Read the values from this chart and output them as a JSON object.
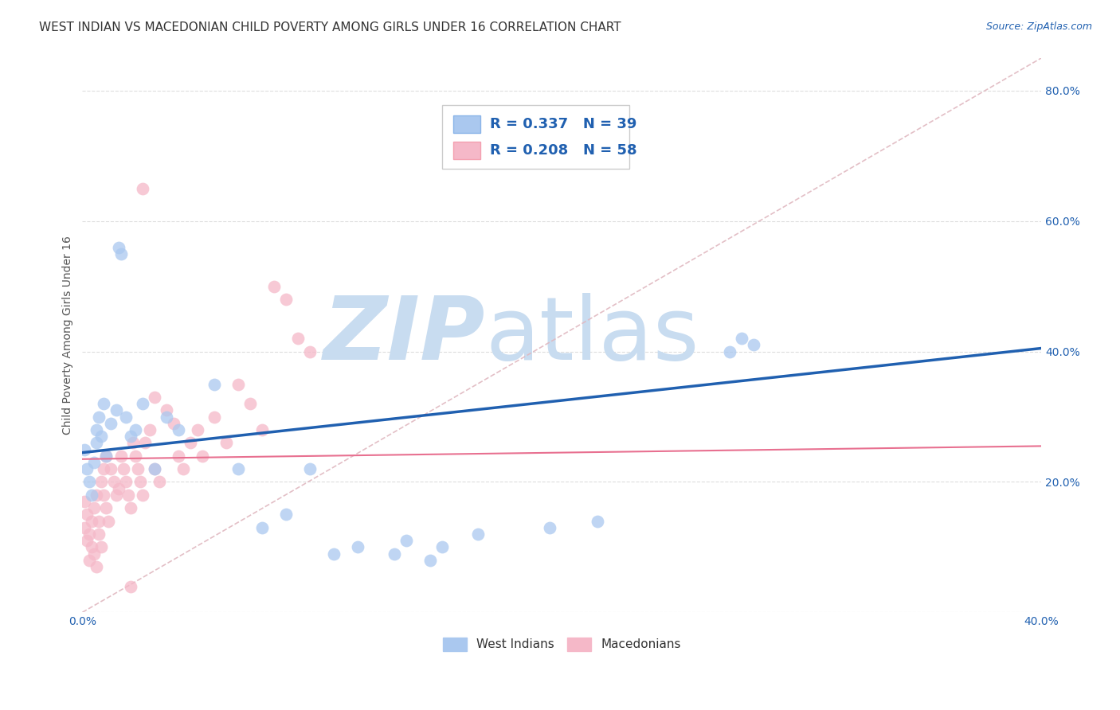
{
  "title": "WEST INDIAN VS MACEDONIAN CHILD POVERTY AMONG GIRLS UNDER 16 CORRELATION CHART",
  "source": "Source: ZipAtlas.com",
  "ylabel": "Child Poverty Among Girls Under 16",
  "xlim": [
    0.0,
    0.4
  ],
  "ylim": [
    0.0,
    0.85
  ],
  "xtick_vals": [
    0.0,
    0.05,
    0.1,
    0.15,
    0.2,
    0.25,
    0.3,
    0.35,
    0.4
  ],
  "xtick_labels": [
    "0.0%",
    "",
    "",
    "",
    "",
    "",
    "",
    "",
    "40.0%"
  ],
  "ytick_vals": [
    0.0,
    0.2,
    0.4,
    0.6,
    0.8
  ],
  "ytick_labels": [
    "",
    "20.0%",
    "40.0%",
    "60.0%",
    "80.0%"
  ],
  "west_indian_R": 0.337,
  "west_indian_N": 39,
  "macedonian_R": 0.208,
  "macedonian_N": 58,
  "west_indian_color": "#aac8ef",
  "macedonian_color": "#f5b8c8",
  "west_indian_line_color": "#2060b0",
  "macedonian_line_color": "#e87090",
  "diagonal_color": "#e0b8c0",
  "grid_color": "#dddddd",
  "background_color": "#ffffff",
  "watermark_zip_color": "#c8dcf0",
  "watermark_atlas_color": "#c8dcf0",
  "legend_text_color": "#2060b0",
  "title_color": "#333333",
  "title_fontsize": 11,
  "axis_label_fontsize": 10,
  "tick_fontsize": 10,
  "legend_fontsize": 13,
  "wi_line_y0": 0.245,
  "wi_line_y1": 0.405,
  "mac_line_y0": 0.235,
  "mac_line_y1": 0.255,
  "wi_x": [
    0.001,
    0.002,
    0.003,
    0.004,
    0.005,
    0.006,
    0.006,
    0.007,
    0.008,
    0.009,
    0.01,
    0.012,
    0.014,
    0.015,
    0.016,
    0.018,
    0.02,
    0.022,
    0.025,
    0.03,
    0.035,
    0.04,
    0.055,
    0.065,
    0.075,
    0.085,
    0.095,
    0.105,
    0.115,
    0.135,
    0.15,
    0.165,
    0.195,
    0.215,
    0.27,
    0.275,
    0.28,
    0.13,
    0.145
  ],
  "wi_y": [
    0.25,
    0.22,
    0.2,
    0.18,
    0.23,
    0.26,
    0.28,
    0.3,
    0.27,
    0.32,
    0.24,
    0.29,
    0.31,
    0.56,
    0.55,
    0.3,
    0.27,
    0.28,
    0.32,
    0.22,
    0.3,
    0.28,
    0.35,
    0.22,
    0.13,
    0.15,
    0.22,
    0.09,
    0.1,
    0.11,
    0.1,
    0.12,
    0.13,
    0.14,
    0.4,
    0.42,
    0.41,
    0.09,
    0.08
  ],
  "mac_x": [
    0.001,
    0.001,
    0.002,
    0.002,
    0.003,
    0.003,
    0.004,
    0.004,
    0.005,
    0.005,
    0.006,
    0.006,
    0.007,
    0.007,
    0.008,
    0.008,
    0.009,
    0.009,
    0.01,
    0.01,
    0.011,
    0.012,
    0.013,
    0.014,
    0.015,
    0.016,
    0.017,
    0.018,
    0.019,
    0.02,
    0.021,
    0.022,
    0.023,
    0.024,
    0.025,
    0.026,
    0.028,
    0.03,
    0.032,
    0.035,
    0.038,
    0.04,
    0.042,
    0.045,
    0.048,
    0.05,
    0.055,
    0.06,
    0.065,
    0.07,
    0.075,
    0.08,
    0.085,
    0.09,
    0.095,
    0.03,
    0.025,
    0.02
  ],
  "mac_y": [
    0.17,
    0.13,
    0.15,
    0.11,
    0.12,
    0.08,
    0.14,
    0.1,
    0.09,
    0.16,
    0.07,
    0.18,
    0.14,
    0.12,
    0.2,
    0.1,
    0.18,
    0.22,
    0.16,
    0.24,
    0.14,
    0.22,
    0.2,
    0.18,
    0.19,
    0.24,
    0.22,
    0.2,
    0.18,
    0.16,
    0.26,
    0.24,
    0.22,
    0.2,
    0.18,
    0.26,
    0.28,
    0.22,
    0.2,
    0.31,
    0.29,
    0.24,
    0.22,
    0.26,
    0.28,
    0.24,
    0.3,
    0.26,
    0.35,
    0.32,
    0.28,
    0.5,
    0.48,
    0.42,
    0.4,
    0.33,
    0.65,
    0.04
  ]
}
